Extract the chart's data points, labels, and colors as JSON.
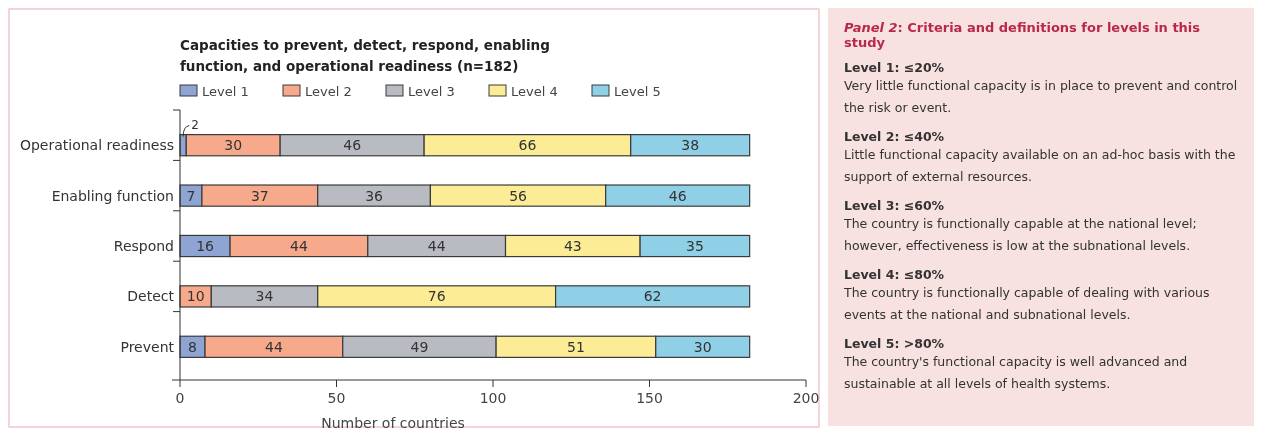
{
  "chart_data": [
    {
      "type": "bar",
      "orientation": "horizontal",
      "stacked": true,
      "title": "Capacities to prevent, detect, respond, enabling function, and operational readiness (n=182)",
      "xlabel": "Number of countries",
      "categories": [
        "Operational readiness",
        "Enabling function",
        "Respond",
        "Detect",
        "Prevent"
      ],
      "xlim": [
        0,
        200
      ],
      "xticks": [
        0,
        50,
        100,
        150,
        200
      ],
      "legend": "top left",
      "series": [
        {
          "name": "Level 1",
          "color": "#8ea4d2",
          "values": [
            2,
            7,
            16,
            0,
            8
          ],
          "value_labels": [
            "2",
            "7",
            "16",
            null,
            "8"
          ]
        },
        {
          "name": "Level 2",
          "color": "#f7a98b",
          "values": [
            30,
            37,
            44,
            10,
            44
          ],
          "value_labels": [
            "30",
            "37",
            "44",
            "10",
            "44"
          ]
        },
        {
          "name": "Level 3",
          "color": "#b8bcc2",
          "values": [
            46,
            36,
            44,
            34,
            49
          ],
          "value_labels": [
            "46",
            "36",
            "44",
            "34",
            "49"
          ]
        },
        {
          "name": "Level 4",
          "color": "#fcec96",
          "values": [
            66,
            56,
            43,
            76,
            51
          ],
          "value_labels": [
            "66",
            "56",
            "43",
            "76",
            "51"
          ]
        },
        {
          "name": "Level 5",
          "color": "#8fd0e6",
          "values": [
            38,
            46,
            35,
            62,
            30
          ],
          "value_labels": [
            "38",
            "46",
            "35",
            "62",
            "30"
          ]
        }
      ]
    },
    {
      "type": "other",
      "title": "Panel 2: Criteria and definitions for levels in this study",
      "annotations": [
        "Level 1: ≤20%",
        "Very little functional capacity is in place to prevent and control the risk or event.",
        "Level 2: ≤40%",
        "Little functional capacity available on an ad-hoc basis with the support of external resources.",
        "Level 3: ≤60%",
        "The country is functionally capable at the national level; however, effectiveness is low at the subnational levels.",
        "Level 4: ≤80%",
        "The country is functionally capable of dealing with various events at the national and subnational levels.",
        "Level 5: >80%",
        "The country's functional capacity is well advanced and sustainable at all levels of health systems."
      ]
    }
  ]
}
